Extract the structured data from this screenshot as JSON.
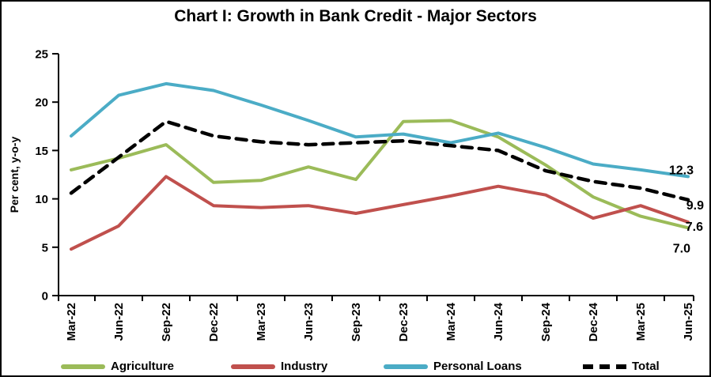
{
  "chart_data": {
    "type": "line",
    "title": "Chart I: Growth in Bank Credit - Major Sectors",
    "ylabel": "Per cent, y-o-y",
    "xlabel": "",
    "ylim": [
      0,
      25
    ],
    "yticks": [
      0,
      5,
      10,
      15,
      20,
      25
    ],
    "grid": false,
    "legend_position": "bottom",
    "categories": [
      "Mar-22",
      "Jun-22",
      "Sep-22",
      "Dec-22",
      "Mar-23",
      "Jun-23",
      "Sep-23",
      "Dec-23",
      "Mar-24",
      "Jun-24",
      "Sep-24",
      "Dec-24",
      "Mar-25",
      "Jun-25"
    ],
    "series": [
      {
        "name": "Agriculture",
        "color": "#9BBB59",
        "style": "solid",
        "values": [
          13.0,
          14.2,
          15.6,
          11.7,
          11.9,
          13.3,
          12.0,
          18.0,
          18.1,
          16.4,
          13.5,
          10.2,
          8.2,
          7.0
        ]
      },
      {
        "name": "Industry",
        "color": "#C0504D",
        "style": "solid",
        "values": [
          4.8,
          7.2,
          12.3,
          9.3,
          9.1,
          9.3,
          8.5,
          9.4,
          10.3,
          11.3,
          10.4,
          8.0,
          9.3,
          7.6
        ]
      },
      {
        "name": "Personal Loans",
        "color": "#4BACC6",
        "style": "solid",
        "values": [
          16.5,
          20.7,
          21.9,
          21.2,
          19.7,
          18.1,
          16.4,
          16.7,
          15.8,
          16.8,
          15.3,
          13.6,
          13.0,
          12.3
        ]
      },
      {
        "name": "Total",
        "color": "#000000",
        "style": "dashed",
        "values": [
          10.6,
          14.3,
          18.0,
          16.5,
          15.9,
          15.6,
          15.8,
          16.0,
          15.5,
          15.0,
          12.9,
          11.8,
          11.1,
          9.9
        ]
      }
    ],
    "end_labels": [
      {
        "series": "Personal Loans",
        "text": "12.3"
      },
      {
        "series": "Total",
        "text": "9.9"
      },
      {
        "series": "Industry",
        "text": "7.6"
      },
      {
        "series": "Agriculture",
        "text": "7.0"
      }
    ]
  }
}
